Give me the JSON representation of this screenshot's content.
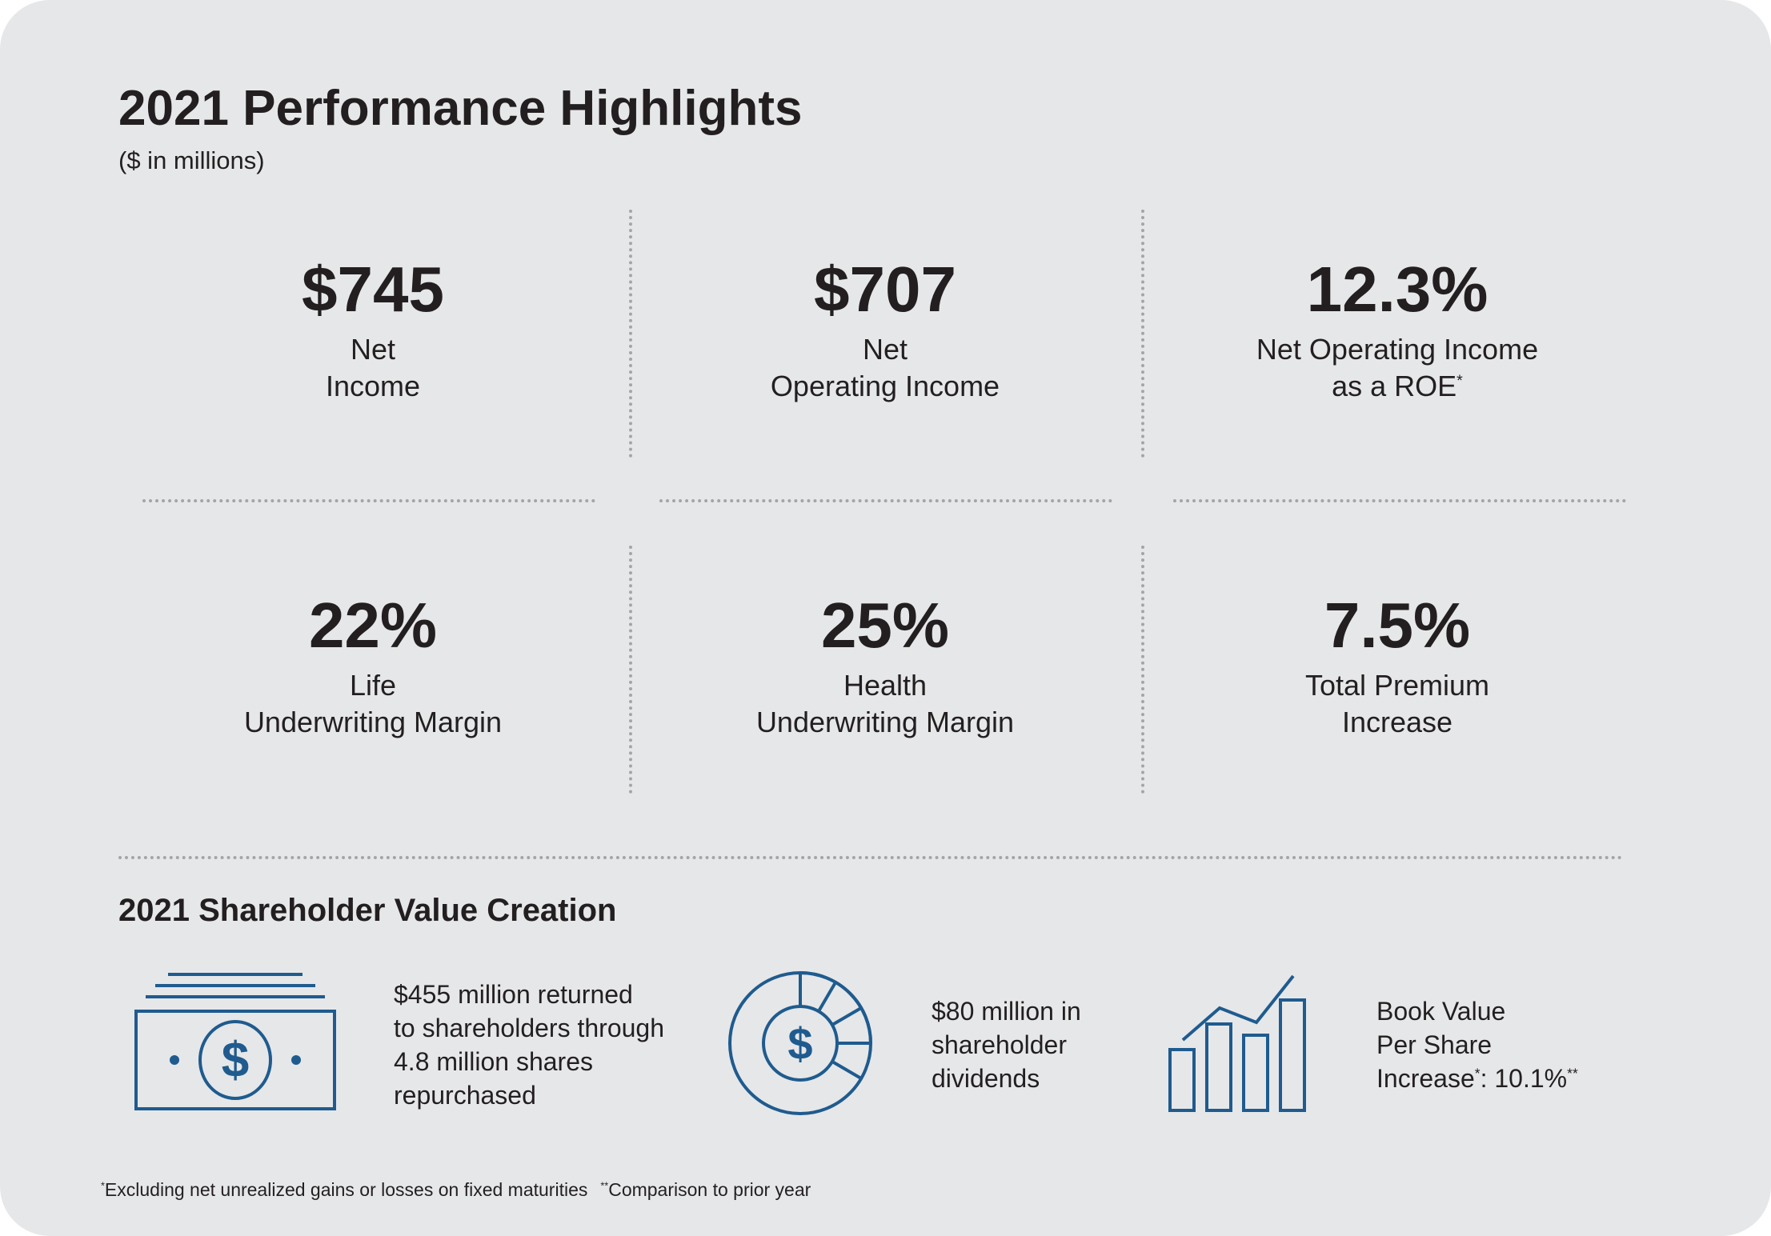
{
  "header": {
    "title": "2021 Performance Highlights",
    "subtitle": "($ in millions)"
  },
  "metrics": [
    {
      "value": "$745",
      "label_lines": [
        "Net",
        "Income"
      ]
    },
    {
      "value": "$707",
      "label_lines": [
        "Net",
        "Operating Income"
      ]
    },
    {
      "value": "12.3%",
      "label_lines": [
        "Net Operating Income",
        "as a ROE"
      ],
      "label_marker": "*"
    },
    {
      "value": "22%",
      "label_lines": [
        "Life",
        "Underwriting Margin"
      ]
    },
    {
      "value": "25%",
      "label_lines": [
        "Health",
        "Underwriting Margin"
      ]
    },
    {
      "value": "7.5%",
      "label_lines": [
        "Total Premium",
        "Increase"
      ]
    }
  ],
  "shareholder": {
    "title": "2021 Shareholder Value Creation",
    "items": [
      {
        "icon": "dollar-bill-icon",
        "lines": [
          "$455 million returned",
          "to shareholders through",
          "4.8 million shares",
          "repurchased"
        ]
      },
      {
        "icon": "dollar-donut-chart-icon",
        "lines": [
          "$80 million in",
          "shareholder",
          "dividends"
        ]
      },
      {
        "icon": "bar-line-chart-icon",
        "lines": [
          "Book Value",
          "Per Share"
        ],
        "line3_prefix": "Increase",
        "marker1": "*",
        "line3_mid": ": 10.1%",
        "marker2": "**"
      }
    ]
  },
  "footnote": {
    "marker1": "*",
    "text1": "Excluding net unrealized gains or losses on fixed maturities",
    "marker2": "**",
    "text2": "Comparison to prior year"
  },
  "colors": {
    "background": "#e6e7e9",
    "text": "#231f20",
    "accent": "#1f5b8e",
    "divider": "#a3a5a8"
  }
}
